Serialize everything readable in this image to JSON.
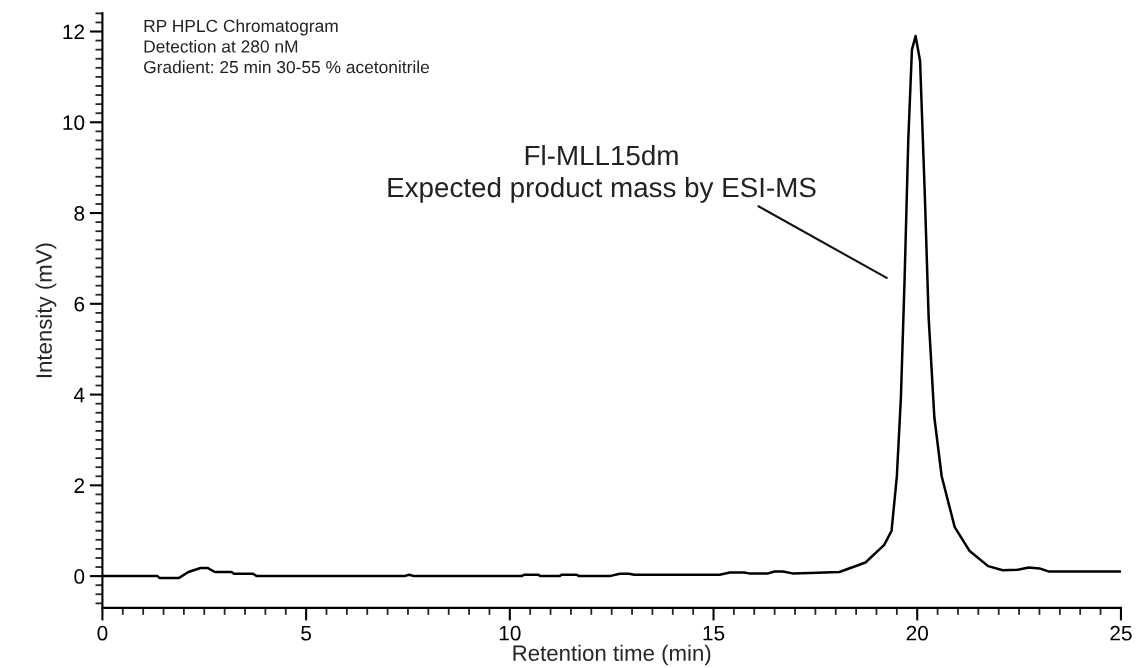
{
  "chart_data": {
    "type": "line",
    "xlabel": "Retention time (min)",
    "ylabel": "Intensity (mV)",
    "x": [
      0,
      1.35,
      1.4,
      1.88,
      2.11,
      2.41,
      2.58,
      2.76,
      3.17,
      3.23,
      3.7,
      3.79,
      7.41,
      7.53,
      7.65,
      10.29,
      10.35,
      10.7,
      10.75,
      11.22,
      11.27,
      11.64,
      11.7,
      12.45,
      12.7,
      12.93,
      13.05,
      15.15,
      15.4,
      15.75,
      15.87,
      16.34,
      16.5,
      16.7,
      16.94,
      17.36,
      18.09,
      18.73,
      19.19,
      19.37,
      19.5,
      19.6,
      19.69,
      19.78,
      19.87,
      19.96,
      20.07,
      20.19,
      20.28,
      20.42,
      20.6,
      20.92,
      21.28,
      21.74,
      22.1,
      22.47,
      22.74,
      23.0,
      23.24,
      25.0
    ],
    "series": [
      {
        "color": "#000000",
        "values": [
          0,
          0,
          -0.04,
          -0.04,
          0.09,
          0.18,
          0.18,
          0.09,
          0.09,
          0.05,
          0.05,
          0,
          0,
          0.03,
          0,
          0,
          0.03,
          0.03,
          0,
          0,
          0.03,
          0.03,
          0,
          0,
          0.05,
          0.05,
          0.03,
          0.03,
          0.08,
          0.08,
          0.06,
          0.06,
          0.1,
          0.1,
          0.06,
          0.07,
          0.09,
          0.3,
          0.69,
          1.0,
          2.2,
          3.95,
          6.55,
          9.6,
          11.6,
          11.9,
          11.35,
          8.3,
          5.7,
          3.5,
          2.2,
          1.08,
          0.56,
          0.22,
          0.13,
          0.14,
          0.19,
          0.17,
          0.1,
          0.1
        ]
      }
    ],
    "xlim": [
      0,
      25
    ],
    "xticks": [
      0,
      5,
      10,
      15,
      20,
      25
    ],
    "ylim": [
      -0.7,
      12.4
    ],
    "yticks": [
      0,
      2,
      4,
      6,
      8,
      10,
      12
    ],
    "grid": false,
    "legend": false,
    "marker": "none",
    "line_style": "solid",
    "annotations": [
      "RP HPLC Chromatogram\nDetection at 280 nM\nGradient: 25 min 30-55 % acetonitrile",
      "Fl-MLL15dm\nExpected product mass by ESI-MS"
    ]
  }
}
